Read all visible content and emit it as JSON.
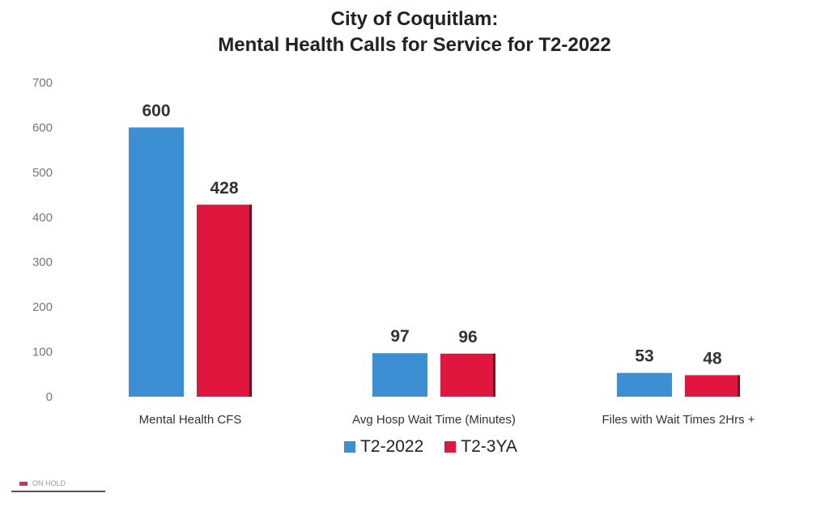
{
  "chart_data": {
    "type": "bar",
    "title": "City of Coquitlam:",
    "subtitle": "Mental Health Calls for Service for T2-2022",
    "categories": [
      "Mental Health CFS",
      "Avg Hosp Wait Time (Minutes)",
      "Files with Wait Times 2Hrs +"
    ],
    "series": [
      {
        "name": "T2-2022",
        "color": "#3d8fd3",
        "values": [
          600,
          97,
          53
        ]
      },
      {
        "name": "T2-3YA",
        "color": "#e0163f",
        "values": [
          428,
          96,
          48
        ]
      }
    ],
    "ylim": [
      0,
      700
    ],
    "yticks": [
      "0",
      "100",
      "200",
      "300",
      "400",
      "500",
      "600",
      "700"
    ],
    "grid": false,
    "legend": "bottom",
    "data_labels": true
  },
  "footer": {
    "text": "ON HOLD"
  }
}
